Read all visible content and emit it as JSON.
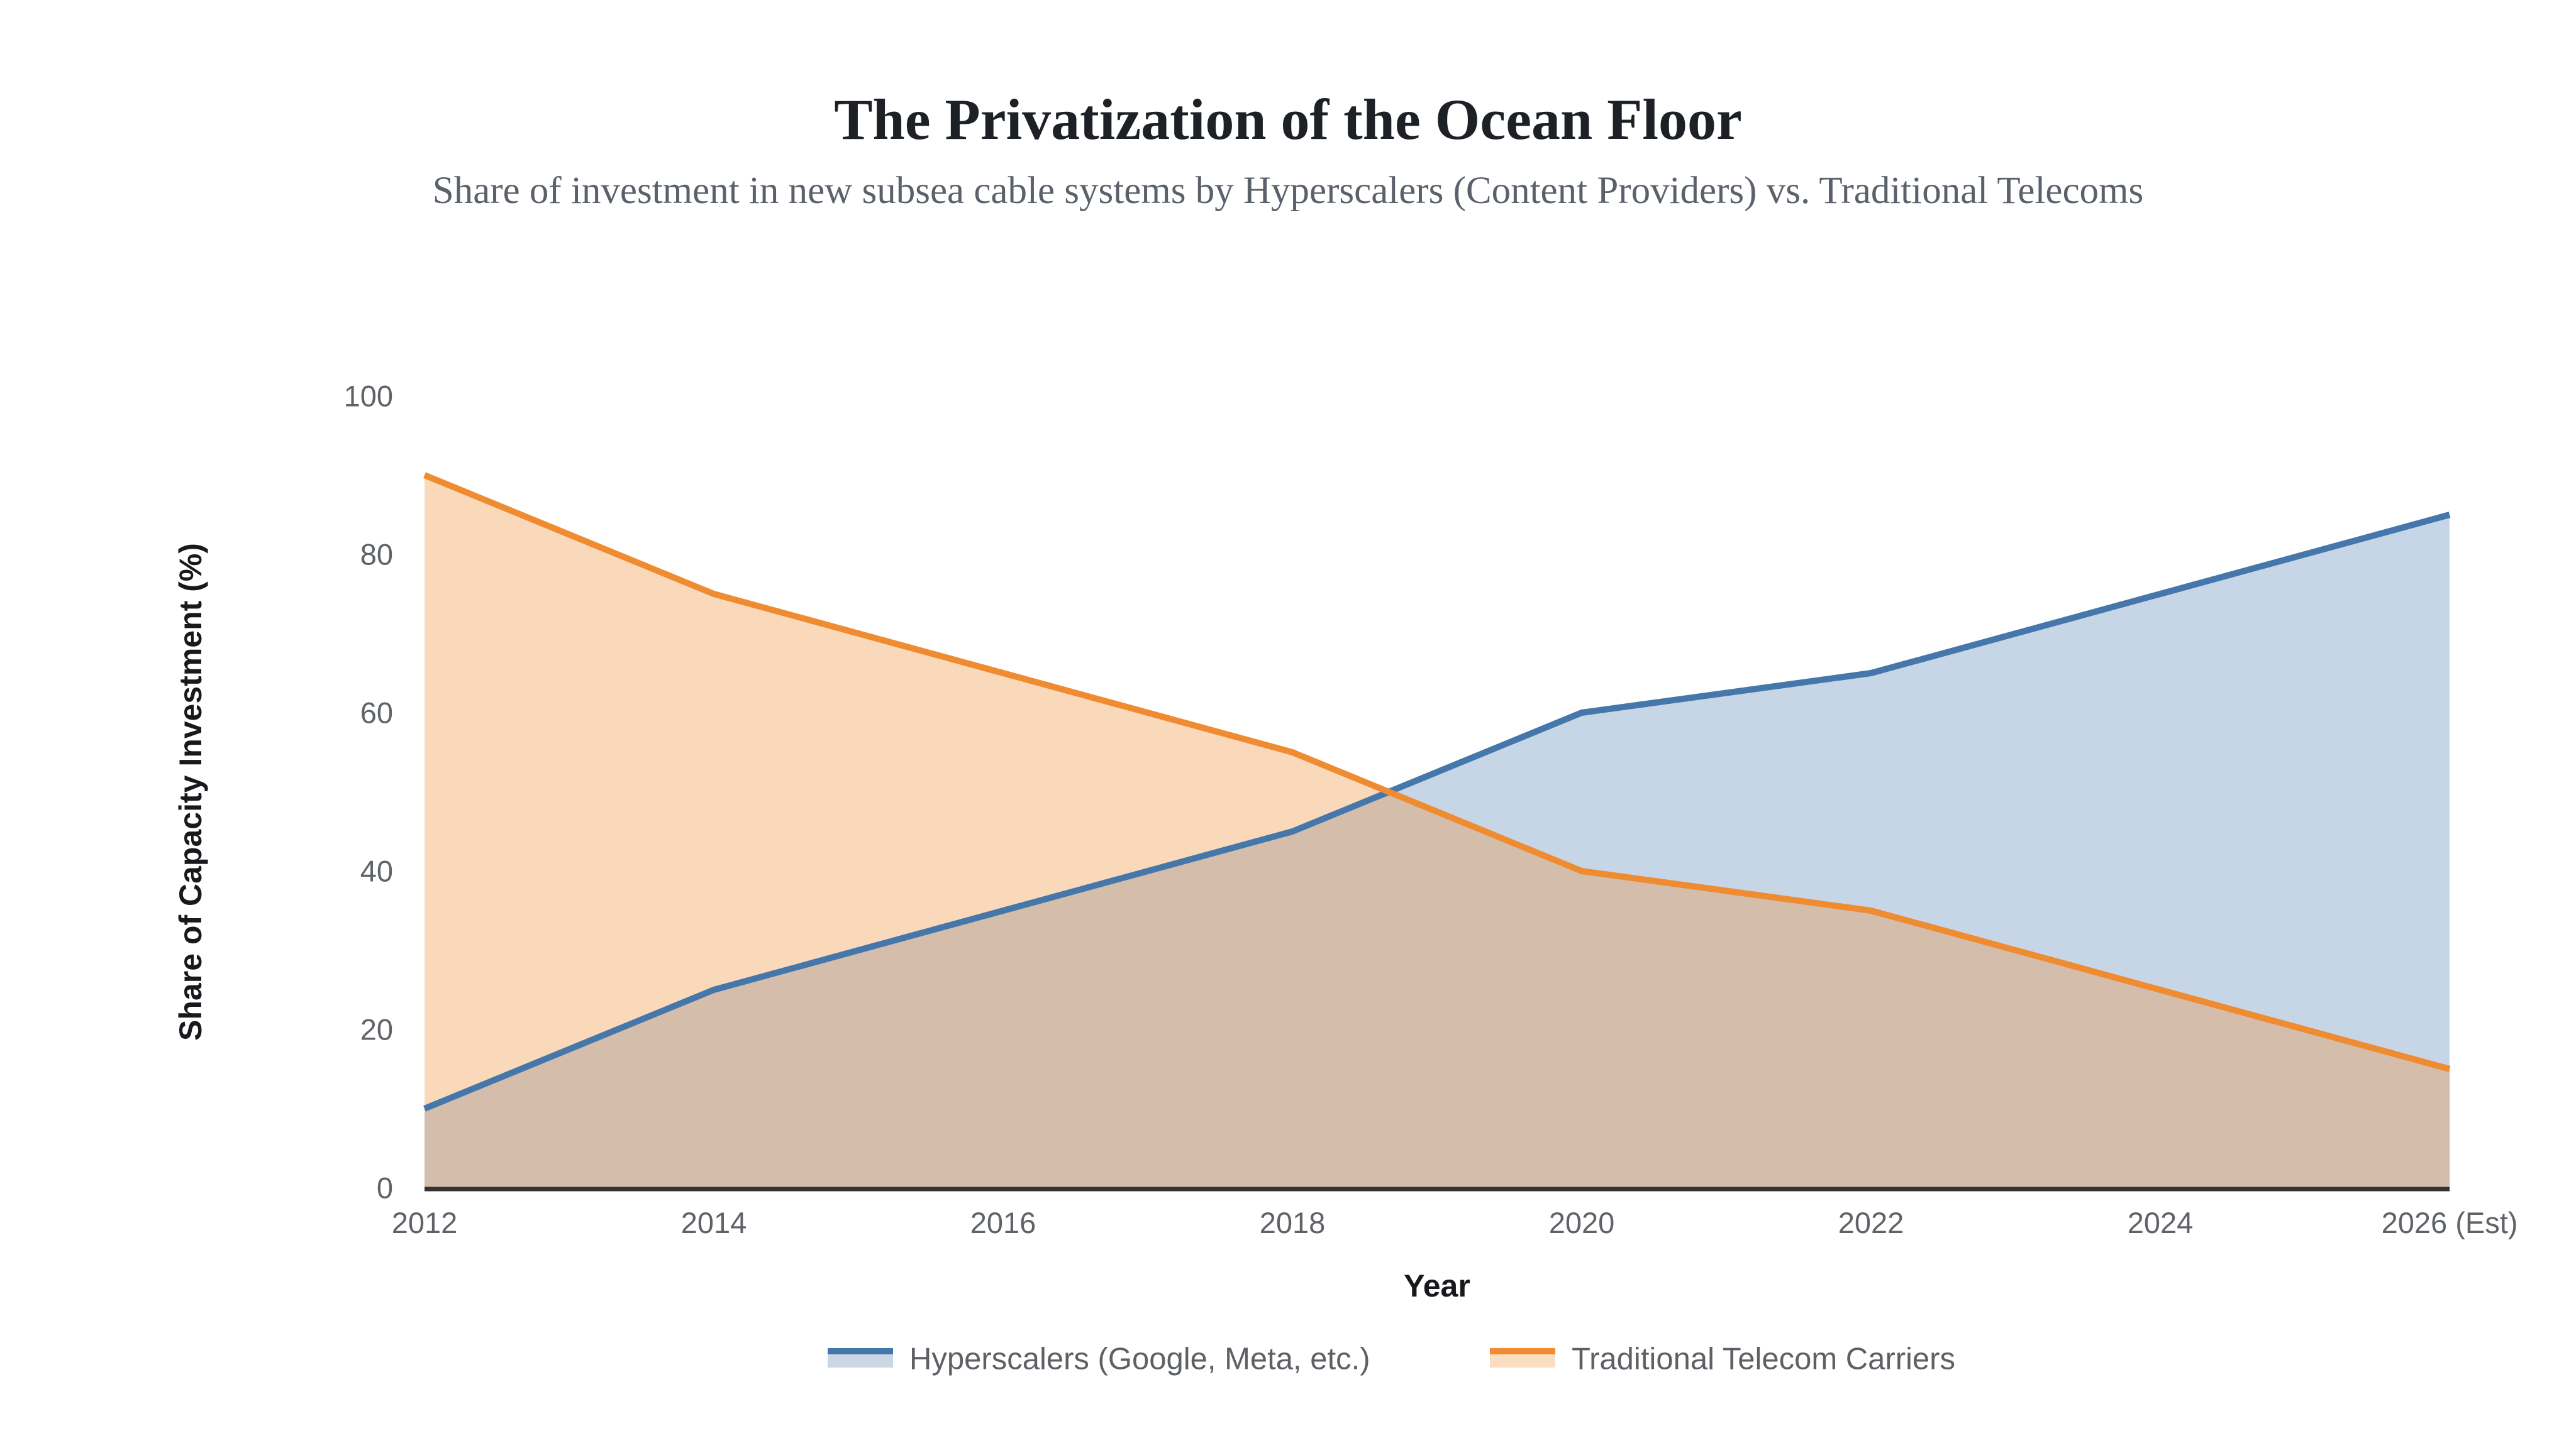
{
  "header": {
    "title": "The Privatization of the Ocean Floor",
    "subtitle": "Share of investment in new subsea cable systems by Hyperscalers (Content Providers) vs. Traditional Telecoms"
  },
  "chart_data": {
    "type": "area",
    "x_tick_labels": [
      "2012",
      "2014",
      "2016",
      "2018",
      "2020",
      "2022",
      "2024",
      "2026 (Est)"
    ],
    "series": [
      {
        "name": "Hyperscalers (Google, Meta, etc.)",
        "values": [
          10,
          25,
          35,
          45,
          60,
          65,
          75,
          85
        ],
        "line_color": "#4577ab",
        "fill_color": "rgba(69,119,171,0.30)"
      },
      {
        "name": "Traditional Telecom Carriers",
        "values": [
          90,
          75,
          65,
          55,
          40,
          35,
          25,
          15
        ],
        "line_color": "#ef8b30",
        "fill_color": "rgba(239,139,48,0.33)"
      }
    ],
    "xlabel": "Year",
    "ylabel": "Share of Capacity Investment (%)",
    "ylim": [
      0,
      100
    ],
    "y_ticks": [
      0,
      20,
      40,
      60,
      80,
      100
    ],
    "grid": false,
    "legend_position": "bottom",
    "axis_line_color": "#333333",
    "tick_label_color": "#5f6368"
  },
  "legend": {
    "entries": [
      {
        "label": "Hyperscalers (Google, Meta, etc.)",
        "line_color": "#4577ab",
        "fill_color": "#ccd7e6"
      },
      {
        "label": "Traditional Telecom Carriers",
        "line_color": "#ef8b30",
        "fill_color": "#fbdec2"
      }
    ]
  }
}
